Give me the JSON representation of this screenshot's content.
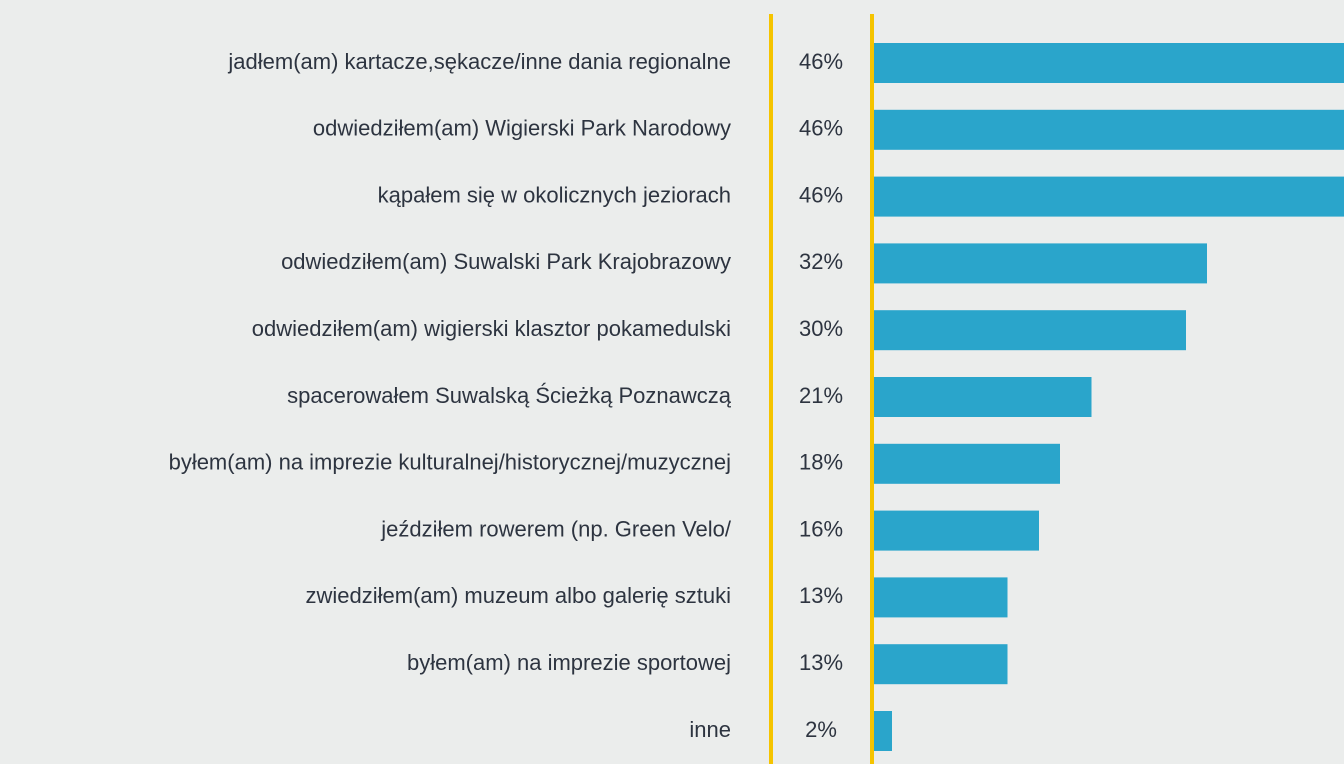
{
  "chart_data": {
    "type": "bar",
    "orientation": "horizontal",
    "color": "#2aa5cb",
    "categories": [
      "jadłem(am) kartacze,sękacze/inne dania regionalne",
      "odwiedziłem(am) Wigierski Park Narodowy",
      "kąpałem się w okolicznych jeziorach",
      "odwiedziłem(am) Suwalski Park Krajobrazowy",
      "odwiedziłem(am) wigierski klasztor pokamedulski",
      "spacerowałem Suwalską Ścieżką Poznawczą",
      "byłem(am) na imprezie kulturalnej/historycznej/muzycznej",
      "jeździłem rowerem (np. Green Velo/",
      "zwiedziłem(am) muzeum albo galerię sztuki",
      "byłem(am) na imprezie sportowej",
      "inne"
    ],
    "values": [
      46,
      46,
      46,
      32,
      30,
      21,
      18,
      16,
      13,
      13,
      2
    ],
    "value_labels": [
      "46%",
      "46%",
      "46%",
      "32%",
      "30%",
      "21%",
      "18%",
      "16%",
      "13%",
      "13%",
      "2%"
    ]
  }
}
